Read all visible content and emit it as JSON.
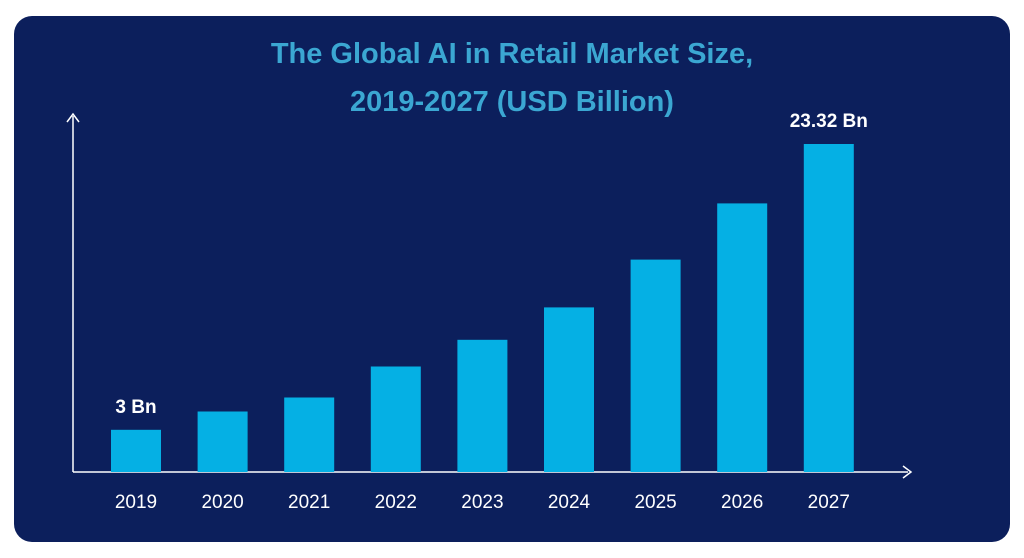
{
  "chart_data": {
    "type": "bar",
    "title": [
      "The Global AI in Retail Market Size,",
      "2019-2027 (USD Billion)"
    ],
    "categories": [
      "2019",
      "2020",
      "2021",
      "2022",
      "2023",
      "2024",
      "2025",
      "2026",
      "2027"
    ],
    "values": [
      3,
      4.3,
      5.3,
      7.5,
      9.4,
      11.7,
      15.1,
      19.1,
      23.32
    ],
    "data_labels": {
      "0": "3 Bn",
      "8": "23.32 Bn"
    },
    "ylim": [
      0,
      25
    ],
    "grid": false,
    "legend": "none",
    "bar_color": "#05b0e4",
    "axis_color": "#ffffff",
    "background_color": "#0c1f5c",
    "title_color": "#3ba7d2"
  }
}
